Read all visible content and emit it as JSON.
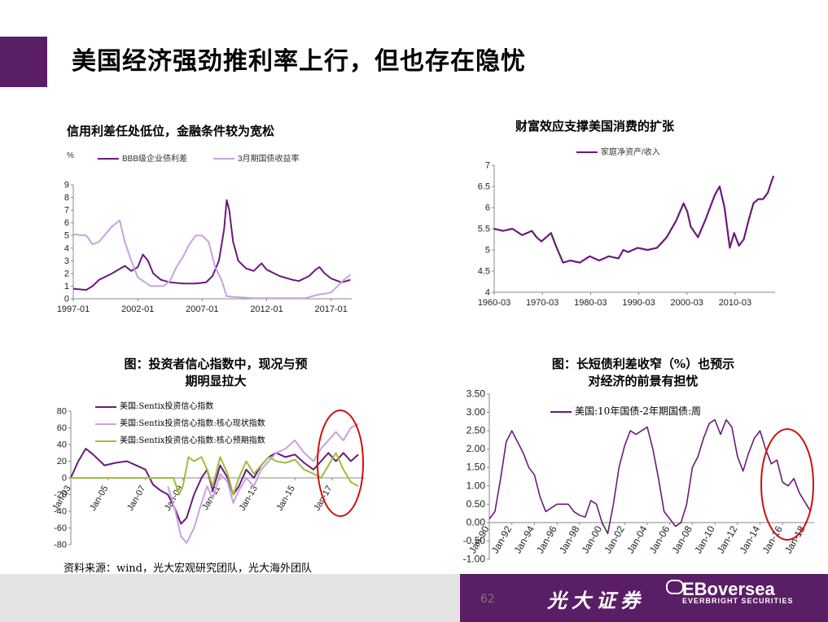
{
  "header": {
    "title": "美国经济强劲推利率上行，但也存在隐忧"
  },
  "charts": {
    "c1": {
      "title": "信用利差任处低位，金融条件较为宽松",
      "unit": "%"
    },
    "c2": {
      "title": "财富效应支撑美国消费的扩张"
    },
    "c3": {
      "title_line1": "图：投资者信心指数中，现况与预",
      "title_line2": "期明显拉大"
    },
    "c4": {
      "title_line1": "图：长短债利差收窄（%）也预示",
      "title_line2": "对经济的前景有担忧"
    }
  },
  "colors": {
    "dark_purple": "#6b1a7a",
    "light_purple": "#c7a3df",
    "green": "#9cbf3a",
    "red_circle": "#d01010",
    "brand": "#5a1e66"
  },
  "chart_data": [
    {
      "type": "line",
      "title": "信用利差任处低位，金融条件较为宽松",
      "ylabel": "%",
      "ylim": [
        0,
        9
      ],
      "yticks": [
        "0",
        "1",
        "2",
        "3",
        "4",
        "5",
        "6",
        "7",
        "8",
        "9"
      ],
      "xlim": [
        1997.0,
        2018.6
      ],
      "xticks": [
        {
          "v": 1997.0,
          "label": "1997-01"
        },
        {
          "v": 2002.0,
          "label": "2002-01"
        },
        {
          "v": 2007.0,
          "label": "2007-01"
        },
        {
          "v": 2012.0,
          "label": "2012-01"
        },
        {
          "v": 2017.0,
          "label": "2017-01"
        }
      ],
      "series": [
        {
          "name": "BBB级企业债利差",
          "color": "#6b1a7a",
          "x": [
            1997.0,
            1998.0,
            1998.5,
            1999.0,
            2000.0,
            2001.0,
            2001.5,
            2002.0,
            2002.4,
            2002.8,
            2003.2,
            2003.8,
            2004.5,
            2005.5,
            2006.5,
            2007.3,
            2007.8,
            2008.3,
            2008.7,
            2008.9,
            2009.1,
            2009.4,
            2009.8,
            2010.4,
            2011.0,
            2011.6,
            2012.0,
            2013.0,
            2014.0,
            2014.5,
            2015.3,
            2015.8,
            2016.1,
            2016.5,
            2017.0,
            2017.8,
            2018.2,
            2018.5
          ],
          "y": [
            0.8,
            0.7,
            1.0,
            1.5,
            2.0,
            2.6,
            2.2,
            2.5,
            3.5,
            3.0,
            2.0,
            1.5,
            1.3,
            1.2,
            1.2,
            1.3,
            1.8,
            3.0,
            5.5,
            7.8,
            7.0,
            4.5,
            3.0,
            2.4,
            2.2,
            2.8,
            2.3,
            1.8,
            1.5,
            1.4,
            1.8,
            2.3,
            2.5,
            2.0,
            1.6,
            1.3,
            1.4,
            1.5
          ]
        },
        {
          "name": "3月期国债收益率",
          "color": "#c7a3df",
          "x": [
            1997.0,
            1998.0,
            1998.5,
            1999.0,
            2000.0,
            2000.6,
            2001.0,
            2001.5,
            2002.0,
            2003.0,
            2004.0,
            2004.5,
            2005.0,
            2005.5,
            2006.0,
            2006.5,
            2007.0,
            2007.5,
            2008.0,
            2008.5,
            2008.9,
            2009.5,
            2011.0,
            2013.0,
            2015.0,
            2015.9,
            2016.5,
            2017.0,
            2017.5,
            2018.0,
            2018.5
          ],
          "y": [
            5.1,
            5.0,
            4.3,
            4.5,
            5.7,
            6.2,
            4.5,
            3.0,
            1.7,
            1.0,
            1.0,
            1.4,
            2.5,
            3.3,
            4.3,
            5.0,
            5.0,
            4.5,
            2.5,
            1.5,
            0.2,
            0.15,
            0.05,
            0.05,
            0.05,
            0.3,
            0.4,
            0.5,
            1.0,
            1.5,
            1.9
          ]
        }
      ]
    },
    {
      "type": "line",
      "title": "财富效应支撑美国消费的扩张",
      "ylim": [
        4,
        7
      ],
      "yticks": [
        "4",
        "4.5",
        "5",
        "5.5",
        "6",
        "6.5",
        "7"
      ],
      "xlim": [
        1960.2,
        2018.5
      ],
      "xticks": [
        {
          "v": 1960.2,
          "label": "1960-03"
        },
        {
          "v": 1970.2,
          "label": "1970-03"
        },
        {
          "v": 1980.2,
          "label": "1980-03"
        },
        {
          "v": 1990.2,
          "label": "1990-03"
        },
        {
          "v": 2000.2,
          "label": "2000-03"
        },
        {
          "v": 2010.2,
          "label": "2010-03"
        }
      ],
      "series": [
        {
          "name": "家庭净资产/收入",
          "color": "#6b1a7a",
          "x": [
            1960.2,
            1962,
            1964,
            1966,
            1968,
            1969,
            1970,
            1972,
            1973,
            1974.5,
            1976,
            1978,
            1980,
            1982,
            1984,
            1986,
            1987,
            1988,
            1990,
            1992,
            1994,
            1996,
            1998,
            1999.5,
            2000.3,
            2001,
            2002.5,
            2004,
            2006,
            2007,
            2008,
            2009.1,
            2010,
            2011,
            2012,
            2013,
            2014,
            2015,
            2016,
            2017,
            2017.7,
            2018.2
          ],
          "y": [
            5.5,
            5.45,
            5.5,
            5.35,
            5.45,
            5.3,
            5.2,
            5.4,
            5.1,
            4.7,
            4.75,
            4.7,
            4.85,
            4.75,
            4.85,
            4.8,
            5.0,
            4.95,
            5.05,
            5.0,
            5.05,
            5.3,
            5.7,
            6.1,
            5.9,
            5.55,
            5.3,
            5.7,
            6.3,
            6.5,
            6.0,
            5.05,
            5.4,
            5.1,
            5.25,
            5.7,
            6.1,
            6.2,
            6.2,
            6.35,
            6.6,
            6.75
          ]
        }
      ]
    },
    {
      "type": "line",
      "title": "图：投资者信心指数中，现况与预期明显拉大",
      "ylim": [
        -80,
        80
      ],
      "yticks": [
        "-80",
        "-60",
        "-40",
        "-20",
        "0",
        "20",
        "40",
        "60",
        "80"
      ],
      "xlim": [
        2003.0,
        2018.7
      ],
      "xticks": [
        {
          "v": 2003.0,
          "label": "Jan-03"
        },
        {
          "v": 2005.0,
          "label": "Jan-05"
        },
        {
          "v": 2007.0,
          "label": "Jan-07"
        },
        {
          "v": 2009.0,
          "label": "Jan-09"
        },
        {
          "v": 2011.0,
          "label": "Jan-11"
        },
        {
          "v": 2013.0,
          "label": "Jan-13"
        },
        {
          "v": 2015.0,
          "label": "Jan-15"
        },
        {
          "v": 2017.0,
          "label": "Jan-17"
        }
      ],
      "series": [
        {
          "name": "美国:Sentix投资信心指数",
          "color": "#6b1a7a",
          "x": [
            2003.0,
            2003.4,
            2003.8,
            2004.2,
            2004.8,
            2005.4,
            2006.0,
            2006.5,
            2007.0,
            2007.4,
            2007.8,
            2008.2,
            2008.6,
            2008.9,
            2009.2,
            2009.6,
            2010.0,
            2010.3,
            2010.6,
            2011.0,
            2011.4,
            2011.7,
            2012.0,
            2012.4,
            2012.8,
            2013.2,
            2013.6,
            2014.0,
            2014.5,
            2015.0,
            2015.5,
            2016.0,
            2016.4,
            2016.8,
            2017.2,
            2017.6,
            2018.0,
            2018.4
          ],
          "y": [
            0,
            20,
            35,
            28,
            15,
            18,
            20,
            15,
            10,
            -8,
            -15,
            -20,
            -38,
            -55,
            -48,
            -20,
            0,
            10,
            -15,
            15,
            0,
            -20,
            -10,
            10,
            0,
            15,
            25,
            30,
            25,
            28,
            18,
            10,
            20,
            30,
            20,
            30,
            20,
            28
          ]
        },
        {
          "name": "美国:Sentix投资信心指数:核心现状指数",
          "color": "#c7a3df",
          "x": [
            2008.2,
            2008.6,
            2008.9,
            2009.2,
            2009.6,
            2010.0,
            2010.3,
            2010.6,
            2011.0,
            2011.4,
            2011.7,
            2012.0,
            2012.4,
            2012.8,
            2013.2,
            2013.6,
            2014.0,
            2014.5,
            2015.0,
            2015.5,
            2016.0,
            2016.4,
            2016.8,
            2017.2,
            2017.6,
            2018.0,
            2018.4
          ],
          "y": [
            -10,
            -40,
            -70,
            -78,
            -60,
            -30,
            -10,
            -25,
            5,
            -5,
            -30,
            -15,
            0,
            -10,
            10,
            20,
            30,
            35,
            45,
            30,
            20,
            35,
            45,
            55,
            45,
            60,
            65
          ]
        },
        {
          "name": "美国:Sentix投资信心指数:核心预期指数",
          "color": "#9cbf3a",
          "x": [
            2003.0,
            2008.5,
            2008.8,
            2009.0,
            2009.3,
            2009.6,
            2010.0,
            2010.3,
            2010.6,
            2011.0,
            2011.4,
            2011.7,
            2012.0,
            2012.4,
            2012.8,
            2013.2,
            2013.6,
            2014.0,
            2014.5,
            2015.0,
            2015.5,
            2016.0,
            2016.4,
            2016.8,
            2017.2,
            2017.6,
            2018.0,
            2018.4
          ],
          "y": [
            0,
            0,
            -20,
            -10,
            25,
            20,
            25,
            10,
            -10,
            25,
            5,
            -20,
            0,
            20,
            5,
            15,
            25,
            20,
            18,
            22,
            10,
            5,
            0,
            15,
            30,
            10,
            -5,
            -10
          ]
        }
      ]
    },
    {
      "type": "line",
      "title": "图：长短债利差收窄（%）也预示对经济的前景有担忧",
      "ylim": [
        -1,
        3.5
      ],
      "yticks": [
        "-1.00",
        "-0.50",
        "0.00",
        "0.50",
        "1.00",
        "1.50",
        "2.00",
        "2.50",
        "3.00",
        "3.50"
      ],
      "xlim": [
        1990.0,
        2018.8
      ],
      "xticks": [
        {
          "v": 1990,
          "label": "Jan-90"
        },
        {
          "v": 1992,
          "label": "Jan-92"
        },
        {
          "v": 1994,
          "label": "Jan-94"
        },
        {
          "v": 1996,
          "label": "Jan-96"
        },
        {
          "v": 1998,
          "label": "Jan-98"
        },
        {
          "v": 2000,
          "label": "Jan-00"
        },
        {
          "v": 2002,
          "label": "Jan-02"
        },
        {
          "v": 2004,
          "label": "Jan-04"
        },
        {
          "v": 2006,
          "label": "Jan-06"
        },
        {
          "v": 2008,
          "label": "Jan-08"
        },
        {
          "v": 2010,
          "label": "Jan-10"
        },
        {
          "v": 2012,
          "label": "Jan-12"
        },
        {
          "v": 2014,
          "label": "Jan-14"
        },
        {
          "v": 2016,
          "label": "Jan-16"
        },
        {
          "v": 2018,
          "label": "Jan-18"
        }
      ],
      "series": [
        {
          "name": "美国:10年国债-2年期国债:周",
          "color": "#6b1a7a",
          "x": [
            1990.0,
            1990.5,
            1991.0,
            1991.5,
            1992.0,
            1992.5,
            1993.0,
            1993.5,
            1994.0,
            1994.5,
            1995.0,
            1995.5,
            1996.0,
            1996.5,
            1997.0,
            1997.5,
            1998.0,
            1998.5,
            1999.0,
            1999.5,
            2000.0,
            2000.5,
            2001.0,
            2001.5,
            2002.0,
            2002.5,
            2003.0,
            2003.5,
            2004.0,
            2004.5,
            2005.0,
            2005.5,
            2006.0,
            2006.5,
            2007.0,
            2007.5,
            2008.0,
            2008.5,
            2009.0,
            2009.5,
            2010.0,
            2010.5,
            2011.0,
            2011.5,
            2012.0,
            2012.5,
            2013.0,
            2013.5,
            2014.0,
            2014.5,
            2015.0,
            2015.5,
            2016.0,
            2016.5,
            2017.0,
            2017.5,
            2018.0,
            2018.5
          ],
          "y": [
            0.1,
            0.3,
            1.2,
            2.2,
            2.5,
            2.2,
            1.9,
            1.5,
            1.3,
            0.7,
            0.3,
            0.4,
            0.5,
            0.5,
            0.5,
            0.3,
            0.2,
            0.15,
            0.6,
            0.5,
            0.0,
            -0.3,
            0.5,
            1.5,
            2.1,
            2.5,
            2.4,
            2.5,
            2.6,
            2.0,
            1.2,
            0.3,
            0.1,
            -0.1,
            0.0,
            0.5,
            1.5,
            1.8,
            2.3,
            2.7,
            2.8,
            2.4,
            2.8,
            2.6,
            1.8,
            1.4,
            1.9,
            2.3,
            2.5,
            2.0,
            1.6,
            1.7,
            1.1,
            1.0,
            1.2,
            0.8,
            0.55,
            0.3
          ]
        }
      ]
    }
  ],
  "source": "资料来源：wind，光大宏观研究团队，光大海外团队",
  "footer": {
    "page": "62",
    "brand_cn": "光大证券",
    "brand_en": "EBoversea",
    "brand_sub": "EVERBRIGHT SECURITIES"
  }
}
